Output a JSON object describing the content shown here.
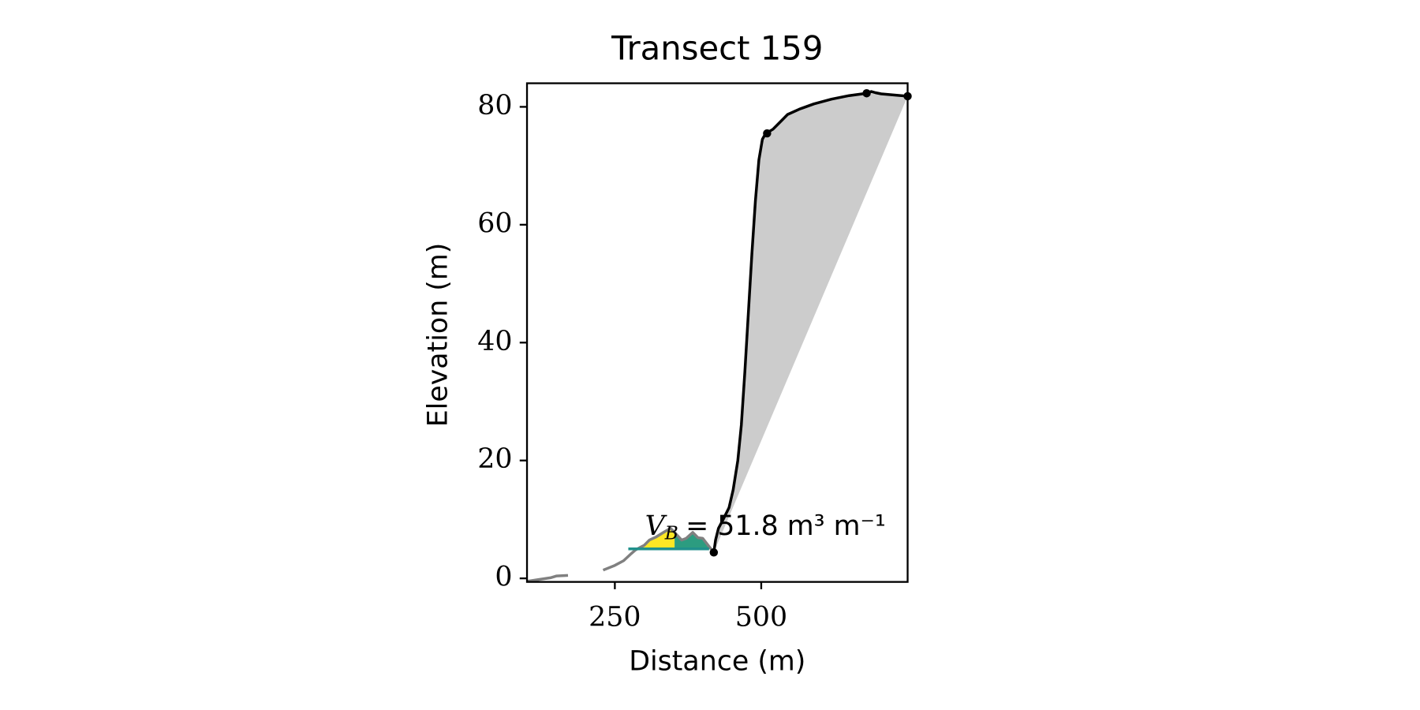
{
  "chart_data": {
    "type": "line",
    "title": "Transect 159",
    "x_label": "Distance (m)",
    "y_label": "Elevation (m)",
    "xlim": [
      100,
      750
    ],
    "ylim": [
      -0.6,
      84
    ],
    "xticks": [
      250,
      500
    ],
    "yticks": [
      0,
      20,
      40,
      60,
      80
    ],
    "annotation": {
      "symbol": "V",
      "subscript": "B",
      "text": "= 51.8 m³ m⁻¹"
    },
    "series": [
      {
        "style": "line",
        "color": "#808080",
        "x": [
          100,
          120,
          140,
          150,
          170,
          210,
          230,
          250,
          265,
          278,
          285,
          294,
          300,
          309,
          320,
          333,
          345,
          352,
          364,
          372,
          383,
          392,
          400,
          411,
          419
        ],
        "values": [
          -0.5,
          -0.2,
          0.1,
          0.4,
          0.5,
          null,
          1.4,
          2.2,
          3.0,
          4.2,
          4.8,
          5.3,
          5.6,
          6.5,
          7.0,
          7.8,
          8.5,
          7.8,
          6.5,
          6.8,
          7.8,
          6.9,
          6.8,
          5.4,
          4.4
        ]
      },
      {
        "style": "line",
        "color": "#000000",
        "fill": "#cccccc",
        "x": [
          419,
          422,
          427,
          435,
          445,
          452,
          460,
          466,
          472,
          478,
          484,
          490,
          496,
          502,
          506,
          510,
          520,
          530,
          545,
          565,
          590,
          620,
          650,
          680,
          688,
          695,
          705,
          750
        ],
        "values": [
          4.4,
          6.5,
          8.5,
          10,
          12,
          15,
          20,
          26,
          35,
          45,
          55,
          64,
          71,
          74.5,
          75.2,
          75.6,
          76.2,
          77.2,
          78.7,
          79.6,
          80.5,
          81.3,
          81.9,
          82.3,
          82.6,
          82.4,
          82.2,
          81.8
        ]
      },
      {
        "style": "points",
        "color": "#000000",
        "x": [
          419,
          510,
          680,
          750
        ],
        "values": [
          4.4,
          75.5,
          82.3,
          81.8
        ]
      },
      {
        "style": "line",
        "color": "#21918c",
        "x": [
          273,
          411
        ],
        "values": [
          5,
          5
        ]
      },
      {
        "style": "area",
        "color": "#fde725",
        "x": [
          296,
          309,
          320,
          333,
          345,
          352
        ],
        "values": [
          5.3,
          6.5,
          7.0,
          7.8,
          8.5,
          7.8
        ]
      },
      {
        "style": "area",
        "color": "#2c9c80",
        "x": [
          352,
          364,
          372,
          383,
          392,
          400,
          411
        ],
        "values": [
          7.8,
          6.5,
          6.8,
          7.8,
          6.9,
          6.8,
          5.4
        ]
      }
    ]
  }
}
